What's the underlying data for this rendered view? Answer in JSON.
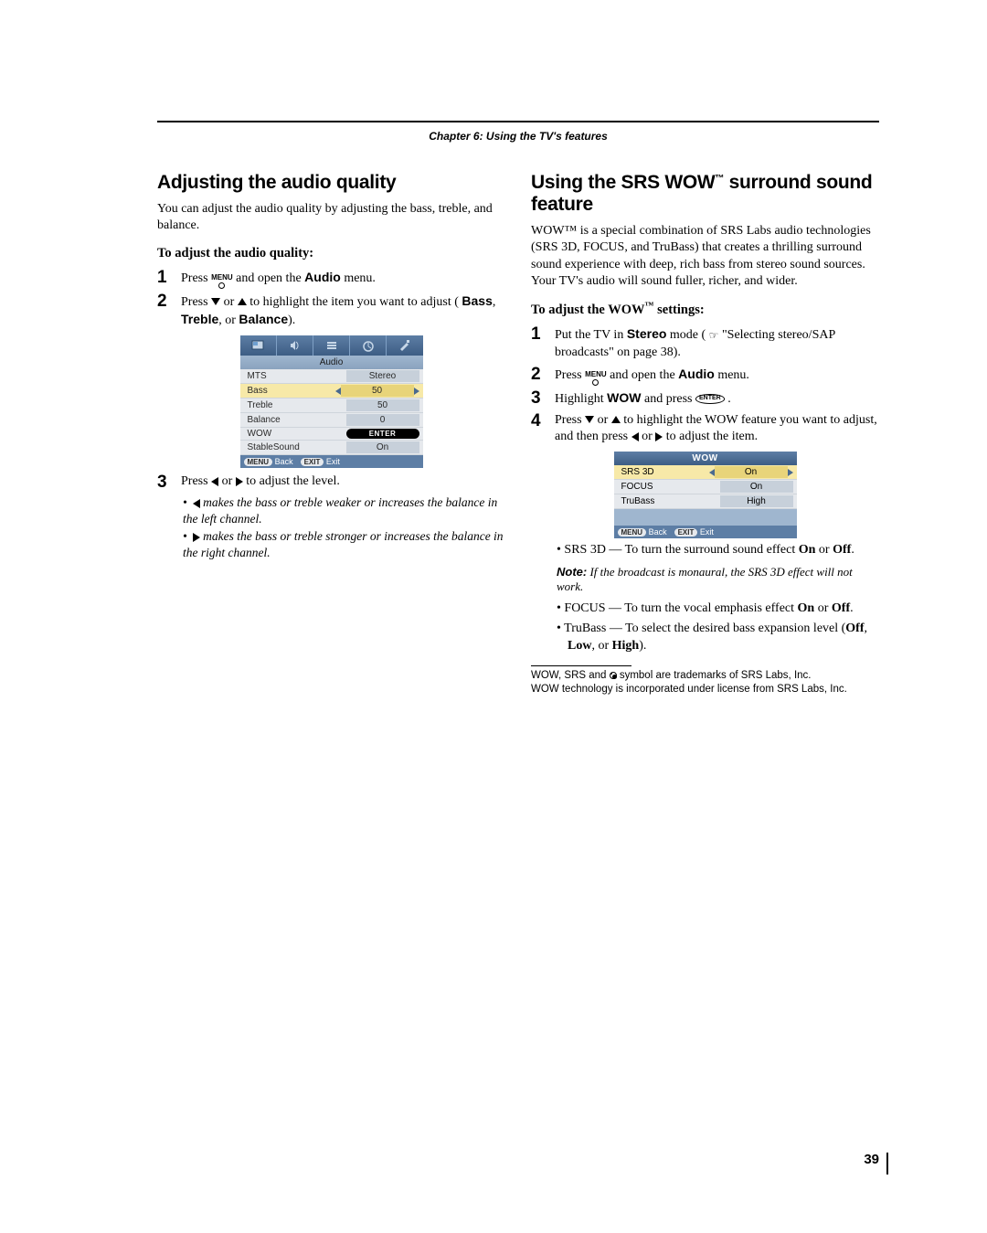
{
  "chapter_header": "Chapter 6: Using the TV's features",
  "page_number": "39",
  "left": {
    "title": "Adjusting the audio quality",
    "intro": "You can adjust the audio quality by adjusting the bass, treble, and balance.",
    "sub": "To adjust the audio quality:",
    "step1": {
      "pre": "Press ",
      "post": " and open the ",
      "menu": "Audio",
      "tail": " menu."
    },
    "step2": {
      "pre": "Press ",
      "mid": " or ",
      "post": " to highlight the item you want to adjust (",
      "b1": "Bass",
      "c1": ", ",
      "b2": "Treble",
      "c2": ", or ",
      "b3": "Balance",
      "tail": ")."
    },
    "menu": {
      "title": "Audio",
      "rows": [
        {
          "label": "MTS",
          "val": "Stereo",
          "sel": false,
          "enter": false
        },
        {
          "label": "Bass",
          "val": "50",
          "sel": true,
          "enter": false
        },
        {
          "label": "Treble",
          "val": "50",
          "sel": false,
          "enter": false
        },
        {
          "label": "Balance",
          "val": "0",
          "sel": false,
          "enter": false
        },
        {
          "label": "WOW",
          "val": "ENTER",
          "sel": false,
          "enter": true
        },
        {
          "label": "StableSound",
          "val": "On",
          "sel": false,
          "enter": false
        }
      ],
      "back": "Back",
      "exit": "Exit",
      "menu_pill": "MENU",
      "exit_pill": "EXIT"
    },
    "step3": {
      "pre": "Press ",
      "mid": " or ",
      "post": " to adjust the level."
    },
    "bullet1": " makes the bass or treble weaker or increases the balance in the left channel.",
    "bullet2": " makes the bass or treble stronger or increases the balance in the right channel."
  },
  "right": {
    "title_a": "Using the SRS WOW",
    "title_b": " surround sound feature",
    "intro": "WOW™ is a special combination of SRS Labs audio technologies (SRS 3D, FOCUS, and TruBass) that creates a thrilling surround sound experience with deep, rich bass from stereo sound sources. Your TV's audio will sound fuller, richer, and wider.",
    "sub_a": "To adjust the WOW",
    "sub_b": " settings:",
    "step1": {
      "pre": "Put the TV in ",
      "b": "Stereo",
      "mid": " mode (",
      "post": " \"Selecting stereo/SAP broadcasts\" on page 38)."
    },
    "step2": {
      "pre": "Press ",
      "post": " and open the ",
      "menu": "Audio",
      "tail": " menu."
    },
    "step3": {
      "pre": "Highlight ",
      "b": "WOW",
      "mid": " and press ",
      "tail": "."
    },
    "step4": {
      "pre": "Press ",
      "mid1": " or ",
      "mid2": " to highlight the WOW feature you want to adjust, and then press ",
      "mid3": " or ",
      "post": " to adjust the item."
    },
    "wow": {
      "title": "WOW",
      "rows": [
        {
          "label": "SRS 3D",
          "val": "On",
          "sel": true
        },
        {
          "label": "FOCUS",
          "val": "On",
          "sel": false
        },
        {
          "label": "TruBass",
          "val": "High",
          "sel": false
        }
      ],
      "back": "Back",
      "exit": "Exit",
      "menu_pill": "MENU",
      "exit_pill": "EXIT"
    },
    "li1": {
      "pre": "SRS 3D — To turn the surround sound effect ",
      "b1": "On",
      "mid": " or ",
      "b2": "Off",
      "tail": "."
    },
    "note_label": "Note:",
    "note_body": " If the broadcast is monaural, the SRS 3D effect will not work.",
    "li2": {
      "pre": "FOCUS — To turn the vocal emphasis effect ",
      "b1": "On",
      "mid": " or ",
      "b2": "Off",
      "tail": "."
    },
    "li3": {
      "pre": "TruBass — To select the desired bass expansion level (",
      "b1": "Off",
      "c1": ", ",
      "b2": "Low",
      "c2": ", or ",
      "b3": "High",
      "tail": ")."
    },
    "foot1": "WOW, SRS and ",
    "foot1b": " symbol are trademarks of SRS Labs, Inc.",
    "foot2": "WOW technology is incorporated under license from SRS Labs, Inc."
  }
}
